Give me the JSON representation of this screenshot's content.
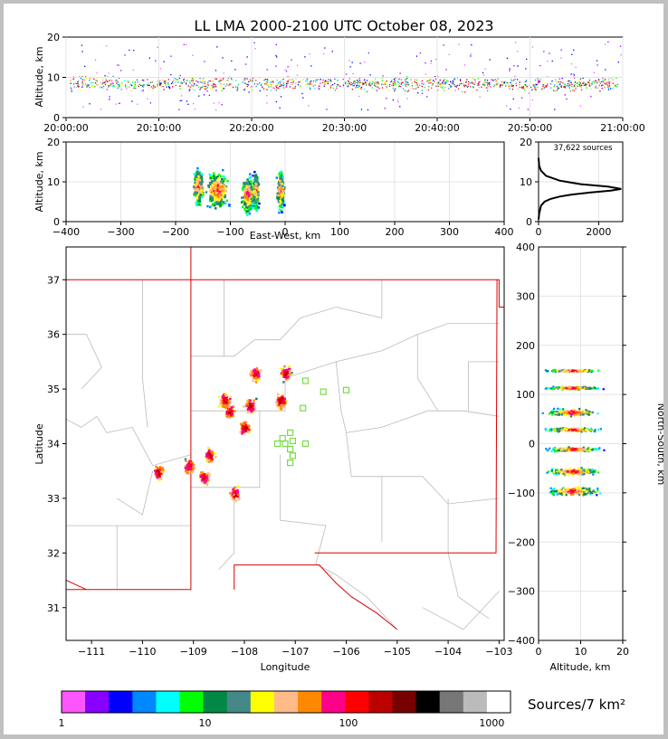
{
  "chart_data": [
    {
      "type": "scatter",
      "panel": "altitude-time",
      "title": "LL LMA 2000-2100 UTC October 08, 2023",
      "ylabel": "Altitude, km",
      "ylim": [
        0,
        20
      ],
      "yticks": [
        "0",
        "10",
        "20"
      ],
      "xticks": [
        "20:00:00",
        "20:10:00",
        "20:20:00",
        "20:30:00",
        "20:40:00",
        "20:50:00",
        "21:00:00"
      ],
      "description_values": {
        "x_range_minutes": [
          0,
          60
        ],
        "dense_altitude_km": [
          6,
          12
        ]
      }
    },
    {
      "type": "heatmap",
      "panel": "altitude-east-west",
      "xlabel": "East-West, km",
      "ylabel": "Altitude, km",
      "xlim": [
        -400,
        400
      ],
      "ylim": [
        0,
        20
      ],
      "xticks": [
        "−400",
        "−300",
        "−200",
        "−100",
        "0",
        "100",
        "200",
        "300",
        "400"
      ],
      "yticks": [
        "0",
        "10",
        "20"
      ],
      "clusters_km": [
        {
          "x": -160,
          "width": 18,
          "peak_alt": 9
        },
        {
          "x": -125,
          "width": 40,
          "peak_alt": 8
        },
        {
          "x": -70,
          "width": 22,
          "peak_alt": 7
        },
        {
          "x": -55,
          "width": 10,
          "peak_alt": 8
        },
        {
          "x": -10,
          "width": 14,
          "peak_alt": 8
        }
      ]
    },
    {
      "type": "line",
      "panel": "altitude-histogram",
      "annotation": "37,622 sources",
      "xlim": [
        0,
        2800
      ],
      "ylim": [
        0,
        20
      ],
      "xticks": [
        "0",
        "2000"
      ],
      "yticks": [
        "0",
        "10",
        "20"
      ],
      "x": [
        0,
        20,
        80,
        200,
        400,
        700,
        1100,
        1700,
        2400,
        2750,
        2300,
        1400,
        700,
        250,
        80,
        20,
        0
      ],
      "y": [
        0.5,
        2,
        4,
        5,
        5.7,
        6.3,
        6.8,
        7.3,
        7.8,
        8.2,
        8.8,
        9.4,
        10.3,
        11.5,
        12.8,
        14,
        16
      ]
    },
    {
      "type": "scatter",
      "panel": "plan-view-map",
      "xlabel": "Longitude",
      "ylabel": "Latitude",
      "xlim": [
        -111.5,
        -102.9
      ],
      "ylim": [
        30.4,
        37.6
      ],
      "xticks": [
        "−111",
        "−110",
        "−109",
        "−108",
        "−107",
        "−106",
        "−105",
        "−104",
        "−103"
      ],
      "yticks": [
        "31",
        "32",
        "33",
        "34",
        "35",
        "36",
        "37"
      ],
      "source_clusters": [
        {
          "lon": -109.1,
          "lat": 33.6
        },
        {
          "lon": -108.8,
          "lat": 33.4
        },
        {
          "lon": -108.7,
          "lat": 33.8
        },
        {
          "lon": -108.2,
          "lat": 33.1
        },
        {
          "lon": -108.0,
          "lat": 34.3
        },
        {
          "lon": -108.3,
          "lat": 34.6
        },
        {
          "lon": -108.4,
          "lat": 34.8
        },
        {
          "lon": -107.9,
          "lat": 34.7
        },
        {
          "lon": -107.3,
          "lat": 34.8
        },
        {
          "lon": -107.2,
          "lat": 35.3
        },
        {
          "lon": -107.8,
          "lat": 35.3
        },
        {
          "lon": -109.7,
          "lat": 33.5
        }
      ],
      "stations": [
        [
          -106.8,
          35.15
        ],
        [
          -106.45,
          34.95
        ],
        [
          -106.0,
          34.98
        ],
        [
          -106.85,
          34.65
        ],
        [
          -107.1,
          34.2
        ],
        [
          -107.25,
          34.1
        ],
        [
          -107.35,
          34.0
        ],
        [
          -107.05,
          34.05
        ],
        [
          -106.8,
          34.0
        ],
        [
          -107.1,
          33.9
        ],
        [
          -107.2,
          34.0
        ],
        [
          -107.05,
          33.78
        ],
        [
          -107.1,
          33.65
        ]
      ]
    },
    {
      "type": "heatmap",
      "panel": "north-south-altitude",
      "xlabel": "Altitude, km",
      "ylabel": "North-South, km",
      "xlim": [
        0,
        20
      ],
      "ylim": [
        -400,
        400
      ],
      "xticks": [
        "0",
        "10",
        "20"
      ],
      "yticks": [
        "−400",
        "−300",
        "−200",
        "−100",
        "0",
        "100",
        "200",
        "300",
        "400"
      ],
      "bands_km": [
        {
          "y": 150,
          "alt": 8,
          "spread": 3
        },
        {
          "y": 115,
          "alt": 8,
          "spread": 4
        },
        {
          "y": 65,
          "alt": 8,
          "spread": 9
        },
        {
          "y": 30,
          "alt": 8,
          "spread": 5
        },
        {
          "y": -10,
          "alt": 8,
          "spread": 6
        },
        {
          "y": -55,
          "alt": 8,
          "spread": 9
        },
        {
          "y": -95,
          "alt": 8,
          "spread": 12
        }
      ]
    }
  ],
  "colorbar": {
    "label": "Sources/7 km²",
    "ticks": [
      "1",
      "10",
      "100",
      "1000"
    ],
    "colors": [
      "#ff55ff",
      "#8800ff",
      "#0000ff",
      "#0088ff",
      "#00ffff",
      "#00ff00",
      "#008844",
      "#448888",
      "#ffff00",
      "#ffbb88",
      "#ff8800",
      "#ff0088",
      "#ff0000",
      "#bb0000",
      "#770000",
      "#000000",
      "#777777",
      "#bbbbbb",
      "#ffffff"
    ]
  },
  "colors": {
    "state_border": "#dd0000",
    "county_line": "#bbbbbb",
    "station": "#77dd44"
  }
}
